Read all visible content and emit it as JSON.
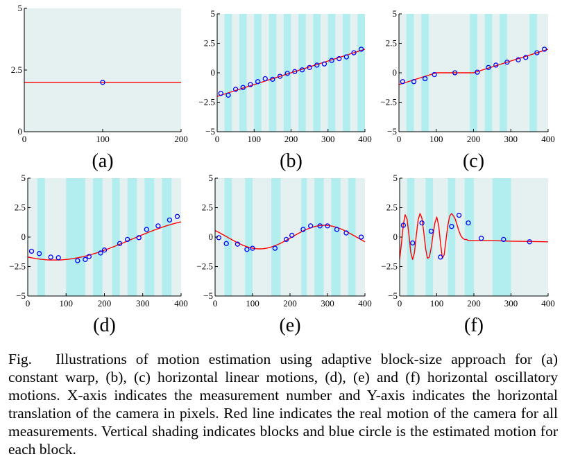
{
  "caption": {
    "label": "Fig.",
    "text": "Illustrations of motion estimation using adaptive block-size approach for (a) constant warp, (b), (c) horizontal linear motions, (d), (e) and (f) horizontal oscillatory motions. X-axis indicates the measurement number and Y-axis indicates the horizontal translation of the camera in pixels. Red line indicates the real motion of the camera for all measurements. Vertical shading indicates blocks and blue circle is the estimated motion for each block."
  },
  "colors": {
    "background": "#e5f1f1",
    "shade": "#b2eef0",
    "real_motion": "#ff0000",
    "estimate": "#0000ff"
  },
  "chart_data": [
    {
      "panel": "(a)",
      "type": "line",
      "xlim": [
        0,
        200
      ],
      "ylim": [
        0,
        5
      ],
      "xticks": [
        "0",
        "100",
        "200"
      ],
      "xtick_values": [
        0,
        100,
        200
      ],
      "yticks": [
        "0",
        "2.5",
        "5"
      ],
      "ytick_values": [
        0,
        2.5,
        5
      ],
      "real_motion": {
        "x": [
          0,
          200
        ],
        "y": [
          2,
          2
        ]
      },
      "blocks": [],
      "estimates": {
        "x": [
          100
        ],
        "y": [
          2
        ]
      }
    },
    {
      "panel": "(b)",
      "type": "line",
      "xlim": [
        0,
        400
      ],
      "ylim": [
        -5,
        5
      ],
      "xticks": [
        "0",
        "100",
        "200",
        "300",
        "400"
      ],
      "xtick_values": [
        0,
        100,
        200,
        300,
        400
      ],
      "yticks": [
        "−5",
        "−2.5",
        "0",
        "2.5",
        "5"
      ],
      "ytick_values": [
        -5,
        -2.5,
        0,
        2.5,
        5
      ],
      "real_motion": {
        "x": [
          0,
          400
        ],
        "y": [
          -2,
          2
        ]
      },
      "blocks": [
        [
          20,
          40
        ],
        [
          60,
          80
        ],
        [
          100,
          120
        ],
        [
          140,
          160
        ],
        [
          180,
          200
        ],
        [
          220,
          240
        ],
        [
          260,
          280
        ],
        [
          300,
          320
        ],
        [
          340,
          360
        ],
        [
          380,
          400
        ]
      ],
      "estimates": {
        "x": [
          10,
          30,
          50,
          70,
          90,
          110,
          130,
          150,
          170,
          190,
          210,
          230,
          250,
          270,
          290,
          310,
          330,
          350,
          370,
          390
        ],
        "y": [
          -1.75,
          -1.9,
          -1.4,
          -1.25,
          -1.0,
          -0.75,
          -0.5,
          -0.55,
          -0.3,
          -0.05,
          0.1,
          0.25,
          0.45,
          0.65,
          0.75,
          1.05,
          1.2,
          1.35,
          1.7,
          2.0
        ]
      }
    },
    {
      "panel": "(c)",
      "type": "line",
      "xlim": [
        0,
        400
      ],
      "ylim": [
        -5,
        5
      ],
      "xticks": [
        "0",
        "100",
        "200",
        "300",
        "400"
      ],
      "xtick_values": [
        0,
        100,
        200,
        300,
        400
      ],
      "yticks": [
        "−5",
        "−2.5",
        "0",
        "2.5",
        "5"
      ],
      "ytick_values": [
        -5,
        -2.5,
        0,
        2.5,
        5
      ],
      "real_motion": {
        "x": [
          0,
          100,
          200,
          400
        ],
        "y": [
          -1,
          0,
          0,
          2
        ]
      },
      "blocks": [
        [
          20,
          40
        ],
        [
          60,
          80
        ],
        [
          190,
          210
        ],
        [
          230,
          250
        ],
        [
          270,
          290
        ],
        [
          350,
          370
        ]
      ],
      "estimates": {
        "x": [
          10,
          40,
          70,
          95,
          150,
          210,
          240,
          260,
          290,
          320,
          340,
          370,
          390
        ],
        "y": [
          -0.75,
          -0.75,
          -0.5,
          -0.15,
          0.0,
          0.05,
          0.45,
          0.65,
          0.9,
          1.1,
          1.3,
          1.7,
          2.0
        ]
      }
    },
    {
      "panel": "(d)",
      "type": "line",
      "xlim": [
        0,
        400
      ],
      "ylim": [
        -5,
        5
      ],
      "xticks": [
        "0",
        "100",
        "200",
        "300",
        "400"
      ],
      "xtick_values": [
        0,
        100,
        200,
        300,
        400
      ],
      "yticks": [
        "−5",
        "−2.5",
        "0",
        "2.5",
        "5"
      ],
      "ytick_values": [
        -5,
        -2.5,
        0,
        2.5,
        5
      ],
      "real_motion": {
        "func": "sine",
        "amplitude": 1.75,
        "period": 800,
        "phase_x": 270,
        "offset": -0.2,
        "x_range": [
          0,
          400
        ]
      },
      "blocks": [
        [
          25,
          45
        ],
        [
          100,
          150
        ],
        [
          170,
          195
        ],
        [
          220,
          240
        ],
        [
          260,
          285
        ],
        [
          305,
          330
        ],
        [
          350,
          375
        ]
      ],
      "estimates": {
        "x": [
          10,
          30,
          60,
          80,
          130,
          150,
          160,
          190,
          200,
          240,
          260,
          290,
          310,
          340,
          370,
          390
        ],
        "y": [
          -1.2,
          -1.4,
          -1.7,
          -1.75,
          -2.0,
          -1.9,
          -1.65,
          -1.35,
          -1.1,
          -0.55,
          -0.2,
          -0.05,
          0.65,
          0.95,
          1.45,
          1.75
        ]
      }
    },
    {
      "panel": "(e)",
      "type": "line",
      "xlim": [
        0,
        400
      ],
      "ylim": [
        -5,
        5
      ],
      "xticks": [
        "0",
        "100",
        "200",
        "300",
        "400"
      ],
      "xtick_values": [
        0,
        100,
        200,
        300,
        400
      ],
      "yticks": [
        "−5",
        "−2.5",
        "0",
        "2.5",
        "5"
      ],
      "ytick_values": [
        -5,
        -2.5,
        0,
        2.5,
        5
      ],
      "real_motion": {
        "func": "sine",
        "amplitude": 1.0,
        "period": 345,
        "phase_x": 205,
        "offset": 0.0,
        "x_range": [
          0,
          400
        ]
      },
      "blocks": [
        [
          25,
          45
        ],
        [
          80,
          100
        ],
        [
          150,
          175
        ],
        [
          230,
          245
        ],
        [
          265,
          290
        ],
        [
          310,
          335
        ],
        [
          355,
          375
        ]
      ],
      "estimates": {
        "x": [
          10,
          30,
          60,
          85,
          100,
          160,
          190,
          205,
          235,
          255,
          280,
          300,
          325,
          350,
          390
        ],
        "y": [
          -0.05,
          -0.55,
          -0.6,
          -1.05,
          -0.95,
          -0.95,
          -0.2,
          0.15,
          0.65,
          0.95,
          0.95,
          0.95,
          0.65,
          0.35,
          0.0
        ]
      }
    },
    {
      "panel": "(f)",
      "type": "line",
      "xlim": [
        0,
        400
      ],
      "ylim": [
        -5,
        5
      ],
      "xticks": [
        "0",
        "100",
        "200",
        "300",
        "400"
      ],
      "xtick_values": [
        0,
        100,
        200,
        300,
        400
      ],
      "yticks": [
        "−5",
        "−2.5",
        "0",
        "2.5",
        "5"
      ],
      "ytick_values": [
        -5,
        -2.5,
        0,
        2.5,
        5
      ],
      "real_motion": {
        "x": [
          0,
          5,
          10,
          15,
          20,
          25,
          30,
          35,
          40,
          45,
          50,
          55,
          60,
          65,
          70,
          75,
          80,
          85,
          90,
          95,
          100,
          105,
          110,
          115,
          120,
          125,
          130,
          135,
          140,
          145,
          150,
          155,
          160,
          165,
          170,
          175,
          180,
          185,
          190,
          200,
          220,
          250,
          300,
          400
        ],
        "y": [
          -1.9,
          -0.5,
          1.1,
          1.9,
          1.5,
          0.2,
          -1.3,
          -1.9,
          -1.3,
          0.2,
          1.5,
          2.0,
          1.6,
          0.4,
          -1.0,
          -1.8,
          -1.7,
          -0.9,
          0.2,
          1.2,
          1.7,
          1.0,
          -0.5,
          -1.8,
          -1.5,
          -0.2,
          1.0,
          1.8,
          2.0,
          1.8,
          1.5,
          1.0,
          0.5,
          0.1,
          -0.1,
          -0.2,
          -0.2,
          -0.3,
          -0.3,
          -0.3,
          -0.3,
          -0.3,
          -0.35,
          -0.4
        ]
      },
      "blocks": [
        [
          20,
          40
        ],
        [
          70,
          90
        ],
        [
          130,
          150
        ],
        [
          175,
          200
        ],
        [
          250,
          300
        ]
      ],
      "estimates": {
        "x": [
          10,
          35,
          60,
          85,
          110,
          140,
          160,
          185,
          220,
          280,
          350
        ],
        "y": [
          1.0,
          -0.5,
          1.2,
          0.5,
          -1.7,
          0.9,
          1.85,
          1.2,
          -0.1,
          -0.2,
          -0.4
        ]
      }
    }
  ]
}
